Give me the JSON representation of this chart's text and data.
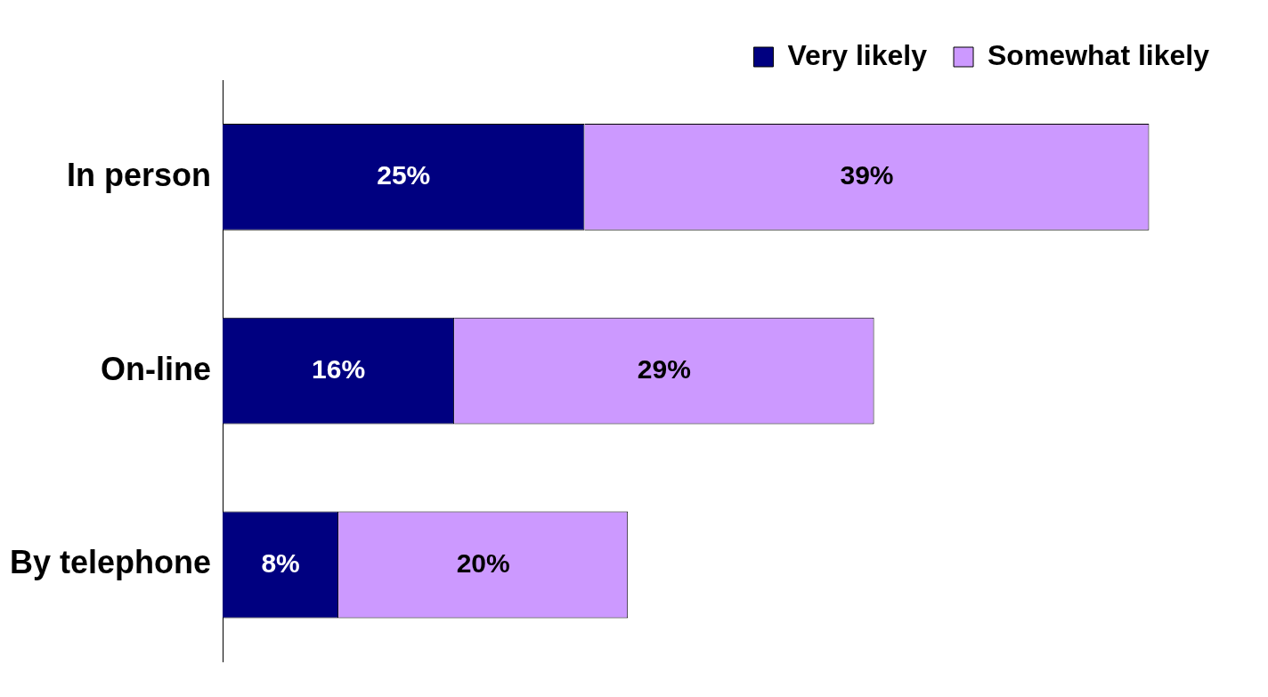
{
  "chart_data": {
    "type": "bar",
    "orientation": "horizontal",
    "stacked": true,
    "categories": [
      "In person",
      "On-line",
      "By telephone"
    ],
    "series": [
      {
        "name": "Very likely",
        "color": "#000080",
        "values": [
          25,
          16,
          8
        ],
        "value_labels": [
          "25%",
          "16%",
          "8%"
        ]
      },
      {
        "name": "Somewhat likely",
        "color": "#cc99ff",
        "values": [
          39,
          29,
          20
        ],
        "value_labels": [
          "39%",
          "29%",
          "20%"
        ]
      }
    ],
    "legend": "top right",
    "grid": false
  }
}
